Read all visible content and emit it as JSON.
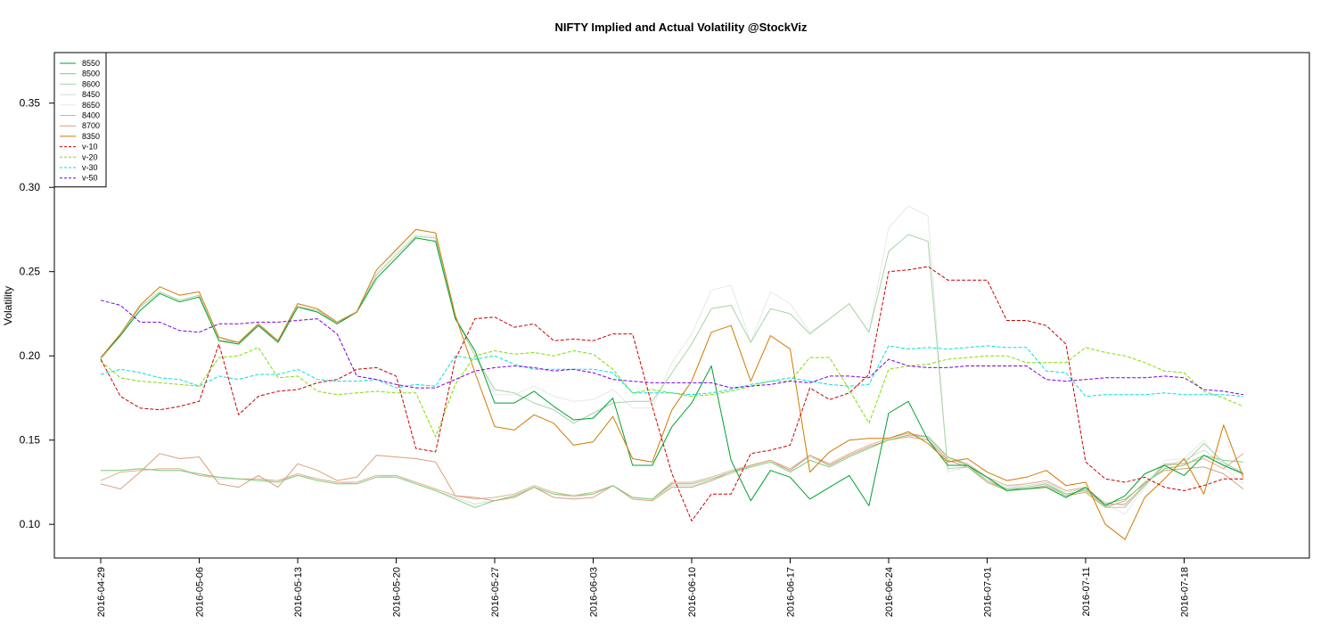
{
  "chart_data": {
    "type": "line",
    "title": "NIFTY Implied and Actual Volatility @StockViz",
    "ylabel": "Volatility",
    "xlabel": "",
    "ylim": [
      0.08,
      0.38
    ],
    "yticks": [
      0.1,
      0.15,
      0.2,
      0.25,
      0.3,
      0.35
    ],
    "ytick_labels": [
      "0.10",
      "0.15",
      "0.20",
      "0.25",
      "0.30",
      "0.35"
    ],
    "xtick_labels": [
      "2016-04-29",
      "2016-05-06",
      "2016-05-13",
      "2016-05-20",
      "2016-05-27",
      "2016-06-03",
      "2016-06-10",
      "2016-06-17",
      "2016-06-24",
      "2016-07-01",
      "2016-07-11",
      "2016-07-18"
    ],
    "xtick_positions": [
      0,
      5,
      10,
      15,
      20,
      25,
      30,
      35,
      40,
      45,
      50,
      55
    ],
    "grid": false,
    "legend_position": "top-left",
    "series": [
      {
        "name": "8550",
        "color": "#00a030",
        "dash": "solid",
        "values": [
          0.199,
          0.212,
          0.227,
          0.237,
          0.232,
          0.235,
          0.209,
          0.207,
          0.218,
          0.208,
          0.229,
          0.226,
          0.219,
          0.226,
          0.246,
          0.258,
          0.27,
          0.268,
          0.222,
          0.203,
          0.172,
          0.172,
          0.179,
          0.17,
          0.162,
          0.163,
          0.175,
          0.135,
          0.135,
          0.158,
          0.172,
          0.194,
          0.138,
          0.114,
          0.132,
          0.128,
          0.115,
          0.122,
          0.129,
          0.111,
          0.166,
          0.173,
          0.15,
          0.135,
          0.135,
          0.128,
          0.12,
          0.121,
          0.122,
          0.116,
          0.122,
          0.111,
          0.117,
          0.13,
          0.135,
          0.129,
          0.141,
          0.135,
          0.13
        ]
      },
      {
        "name": "8500",
        "color": "#7fcf7f",
        "dash": "solid",
        "values": [
          0.132,
          0.132,
          0.133,
          0.132,
          0.132,
          0.13,
          0.128,
          0.127,
          0.126,
          0.125,
          0.129,
          0.126,
          0.124,
          0.124,
          0.128,
          0.128,
          0.124,
          0.12,
          0.115,
          0.11,
          0.114,
          0.117,
          0.122,
          0.118,
          0.117,
          0.118,
          0.123,
          0.116,
          0.115,
          0.124,
          0.124,
          0.127,
          0.131,
          0.134,
          0.137,
          0.131,
          0.138,
          0.134,
          0.14,
          0.145,
          0.15,
          0.153,
          0.152,
          0.14,
          0.135,
          0.126,
          0.121,
          0.122,
          0.124,
          0.118,
          0.12,
          0.112,
          0.115,
          0.124,
          0.133,
          0.135,
          0.141,
          0.138,
          0.137
        ]
      },
      {
        "name": "8600",
        "color": "#a6d4a6",
        "dash": "solid",
        "values": [
          0.198,
          0.212,
          0.229,
          0.238,
          0.233,
          0.236,
          0.209,
          0.208,
          0.218,
          0.209,
          0.229,
          0.227,
          0.219,
          0.226,
          0.248,
          0.26,
          0.271,
          0.27,
          0.223,
          0.2,
          0.18,
          0.178,
          0.172,
          0.168,
          0.16,
          0.166,
          0.172,
          0.173,
          0.173,
          0.19,
          0.207,
          0.228,
          0.23,
          0.208,
          0.228,
          0.225,
          0.213,
          0.222,
          0.231,
          0.214,
          0.262,
          0.272,
          0.268,
          0.133,
          0.134,
          0.126,
          0.12,
          0.122,
          0.124,
          0.117,
          0.121,
          0.11,
          0.11,
          0.123,
          0.136,
          0.136,
          0.148,
          0.137,
          0.13
        ]
      },
      {
        "name": "8450",
        "color": "#dadada",
        "dash": "solid",
        "values": [
          0.132,
          0.132,
          0.133,
          0.132,
          0.132,
          0.129,
          0.127,
          0.127,
          0.126,
          0.126,
          0.129,
          0.127,
          0.125,
          0.124,
          0.128,
          0.129,
          0.124,
          0.12,
          0.116,
          0.112,
          0.114,
          0.117,
          0.122,
          0.118,
          0.116,
          0.118,
          0.123,
          0.116,
          0.115,
          0.123,
          0.123,
          0.126,
          0.13,
          0.134,
          0.137,
          0.132,
          0.14,
          0.135,
          0.141,
          0.146,
          0.15,
          0.153,
          0.151,
          0.139,
          0.135,
          0.127,
          0.122,
          0.123,
          0.125,
          0.119,
          0.121,
          0.113,
          0.111,
          0.124,
          0.135,
          0.138,
          0.144,
          0.136,
          0.131
        ]
      },
      {
        "name": "8650",
        "color": "#e8e8e8",
        "dash": "solid",
        "values": [
          0.198,
          0.212,
          0.229,
          0.238,
          0.233,
          0.236,
          0.21,
          0.208,
          0.218,
          0.209,
          0.23,
          0.227,
          0.22,
          0.227,
          0.249,
          0.262,
          0.272,
          0.271,
          0.224,
          0.202,
          0.177,
          0.177,
          0.182,
          0.176,
          0.173,
          0.174,
          0.18,
          0.169,
          0.169,
          0.196,
          0.213,
          0.239,
          0.242,
          0.208,
          0.238,
          0.231,
          0.214,
          0.222,
          0.231,
          0.214,
          0.276,
          0.289,
          0.283,
          0.131,
          0.134,
          0.127,
          0.122,
          0.124,
          0.126,
          0.119,
          0.122,
          0.112,
          0.106,
          0.122,
          0.138,
          0.139,
          0.15,
          0.134,
          0.124
        ]
      },
      {
        "name": "8400",
        "color": "#e0b090",
        "dash": "solid",
        "values": [
          0.126,
          0.131,
          0.132,
          0.133,
          0.133,
          0.129,
          0.128,
          0.127,
          0.127,
          0.126,
          0.13,
          0.127,
          0.125,
          0.125,
          0.129,
          0.129,
          0.125,
          0.121,
          0.117,
          0.115,
          0.116,
          0.118,
          0.123,
          0.119,
          0.117,
          0.119,
          0.123,
          0.116,
          0.115,
          0.125,
          0.125,
          0.128,
          0.132,
          0.135,
          0.138,
          0.133,
          0.141,
          0.136,
          0.142,
          0.147,
          0.151,
          0.154,
          0.152,
          0.14,
          0.136,
          0.128,
          0.123,
          0.124,
          0.126,
          0.12,
          0.122,
          0.112,
          0.112,
          0.123,
          0.135,
          0.136,
          0.139,
          0.133,
          0.142
        ]
      },
      {
        "name": "8700",
        "color": "#d9a07a",
        "dash": "solid",
        "values": [
          0.124,
          0.121,
          0.131,
          0.142,
          0.139,
          0.14,
          0.124,
          0.122,
          0.129,
          0.122,
          0.136,
          0.132,
          0.126,
          0.128,
          0.141,
          0.14,
          0.139,
          0.137,
          0.117,
          0.116,
          0.114,
          0.116,
          0.122,
          0.116,
          0.115,
          0.116,
          0.123,
          0.115,
          0.114,
          0.122,
          0.122,
          0.126,
          0.131,
          0.135,
          0.138,
          0.132,
          0.141,
          0.135,
          0.141,
          0.146,
          0.15,
          0.152,
          0.15,
          0.138,
          0.134,
          0.125,
          0.12,
          0.121,
          0.123,
          0.117,
          0.119,
          0.11,
          0.114,
          0.125,
          0.132,
          0.133,
          0.134,
          0.13,
          0.121
        ]
      },
      {
        "name": "8350",
        "color": "#d27a00",
        "dash": "solid",
        "values": [
          0.199,
          0.213,
          0.23,
          0.241,
          0.236,
          0.238,
          0.211,
          0.208,
          0.219,
          0.209,
          0.231,
          0.228,
          0.22,
          0.226,
          0.251,
          0.263,
          0.275,
          0.273,
          0.224,
          0.19,
          0.158,
          0.156,
          0.165,
          0.16,
          0.147,
          0.149,
          0.164,
          0.139,
          0.137,
          0.168,
          0.185,
          0.214,
          0.218,
          0.185,
          0.212,
          0.204,
          0.131,
          0.143,
          0.15,
          0.151,
          0.151,
          0.155,
          0.148,
          0.137,
          0.139,
          0.131,
          0.126,
          0.128,
          0.132,
          0.123,
          0.125,
          0.1,
          0.091,
          0.116,
          0.127,
          0.139,
          0.118,
          0.159,
          0.128
        ]
      },
      {
        "name": "v-10",
        "color": "#cc0000",
        "dash": "dashed",
        "values": [
          0.198,
          0.176,
          0.169,
          0.168,
          0.17,
          0.173,
          0.207,
          0.165,
          0.176,
          0.179,
          0.18,
          0.184,
          0.186,
          0.192,
          0.193,
          0.188,
          0.145,
          0.143,
          0.198,
          0.222,
          0.223,
          0.217,
          0.219,
          0.209,
          0.21,
          0.209,
          0.213,
          0.213,
          0.17,
          0.13,
          0.102,
          0.118,
          0.118,
          0.142,
          0.144,
          0.147,
          0.181,
          0.174,
          0.178,
          0.189,
          0.25,
          0.251,
          0.253,
          0.245,
          0.245,
          0.245,
          0.221,
          0.221,
          0.218,
          0.207,
          0.137,
          0.127,
          0.125,
          0.128,
          0.122,
          0.12,
          0.123,
          0.127,
          0.127
        ]
      },
      {
        "name": "v-20",
        "color": "#80dd00",
        "dash": "dashed",
        "values": [
          0.197,
          0.187,
          0.185,
          0.184,
          0.183,
          0.182,
          0.199,
          0.2,
          0.205,
          0.187,
          0.188,
          0.179,
          0.177,
          0.178,
          0.179,
          0.178,
          0.178,
          0.152,
          0.183,
          0.2,
          0.203,
          0.201,
          0.202,
          0.2,
          0.203,
          0.201,
          0.192,
          0.178,
          0.18,
          0.178,
          0.176,
          0.177,
          0.179,
          0.182,
          0.185,
          0.185,
          0.199,
          0.199,
          0.18,
          0.16,
          0.192,
          0.194,
          0.195,
          0.198,
          0.199,
          0.2,
          0.2,
          0.196,
          0.196,
          0.196,
          0.205,
          0.202,
          0.2,
          0.196,
          0.191,
          0.19,
          0.179,
          0.175,
          0.17
        ]
      },
      {
        "name": "v-30",
        "color": "#00e0e0",
        "dash": "dashed",
        "values": [
          0.189,
          0.192,
          0.19,
          0.187,
          0.186,
          0.182,
          0.188,
          0.186,
          0.189,
          0.189,
          0.192,
          0.186,
          0.185,
          0.185,
          0.186,
          0.181,
          0.183,
          0.182,
          0.2,
          0.198,
          0.2,
          0.195,
          0.192,
          0.192,
          0.192,
          0.192,
          0.19,
          0.178,
          0.178,
          0.178,
          0.177,
          0.178,
          0.18,
          0.183,
          0.185,
          0.187,
          0.185,
          0.183,
          0.182,
          0.183,
          0.206,
          0.204,
          0.205,
          0.204,
          0.205,
          0.206,
          0.205,
          0.205,
          0.191,
          0.19,
          0.176,
          0.177,
          0.177,
          0.177,
          0.178,
          0.177,
          0.177,
          0.177,
          0.176
        ]
      },
      {
        "name": "v-50",
        "color": "#7b00e0",
        "dash": "dashed",
        "values": [
          0.233,
          0.23,
          0.22,
          0.22,
          0.215,
          0.214,
          0.219,
          0.219,
          0.22,
          0.22,
          0.221,
          0.222,
          0.213,
          0.188,
          0.186,
          0.183,
          0.181,
          0.181,
          0.186,
          0.191,
          0.193,
          0.194,
          0.193,
          0.191,
          0.192,
          0.19,
          0.186,
          0.185,
          0.184,
          0.184,
          0.184,
          0.184,
          0.181,
          0.182,
          0.183,
          0.185,
          0.184,
          0.188,
          0.188,
          0.187,
          0.198,
          0.194,
          0.193,
          0.193,
          0.194,
          0.194,
          0.194,
          0.194,
          0.186,
          0.185,
          0.186,
          0.187,
          0.187,
          0.187,
          0.188,
          0.187,
          0.18,
          0.179,
          0.177
        ]
      }
    ]
  }
}
